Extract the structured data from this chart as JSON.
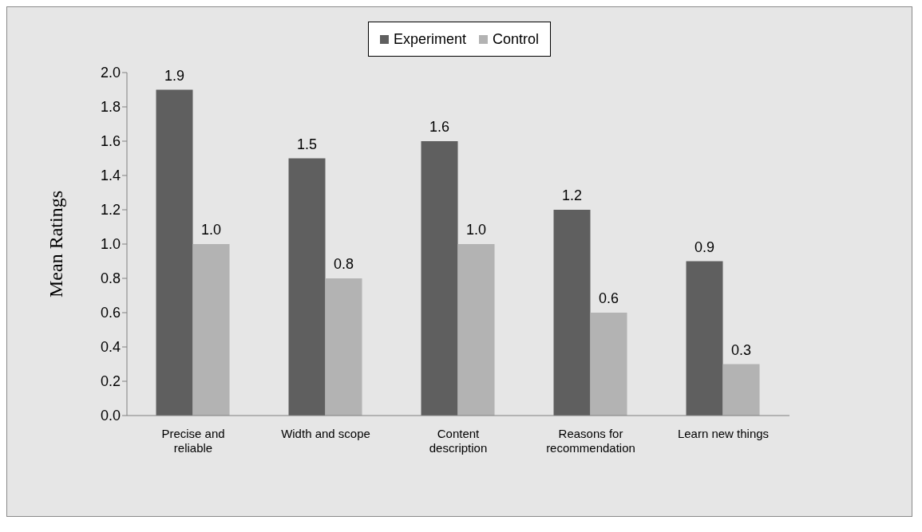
{
  "chart_data": {
    "type": "bar",
    "ylabel": "Mean Ratings",
    "categories": [
      "Precise and reliable",
      "Width and scope",
      "Content description",
      "Reasons for recommendation",
      "Learn new things"
    ],
    "series": [
      {
        "name": "Experiment",
        "color": "#5f5f5f",
        "values": [
          1.9,
          1.5,
          1.6,
          1.2,
          0.9
        ],
        "value_labels": [
          "1.9",
          "1.5",
          "1.6",
          "1.2",
          "0.9"
        ]
      },
      {
        "name": "Control",
        "color": "#b3b3b3",
        "values": [
          1.0,
          0.8,
          1.0,
          0.6,
          0.3
        ],
        "value_labels": [
          "1.0",
          "0.8",
          "1.0",
          "0.6",
          "0.3"
        ]
      }
    ],
    "ylim": [
      0,
      2
    ],
    "yticks": [
      {
        "value": 0,
        "label": "0.0"
      },
      {
        "value": 0.2,
        "label": "0.2"
      },
      {
        "value": 0.4,
        "label": "0.4"
      },
      {
        "value": 0.6,
        "label": "0.6"
      },
      {
        "value": 0.8,
        "label": "0.8"
      },
      {
        "value": 1,
        "label": "1.0"
      },
      {
        "value": 1.2,
        "label": "1.2"
      },
      {
        "value": 1.4,
        "label": "1.4"
      },
      {
        "value": 1.6,
        "label": "1.6"
      },
      {
        "value": 1.8,
        "label": "1.8"
      },
      {
        "value": 2,
        "label": "2.0"
      }
    ],
    "grid": false,
    "legend": "top"
  }
}
